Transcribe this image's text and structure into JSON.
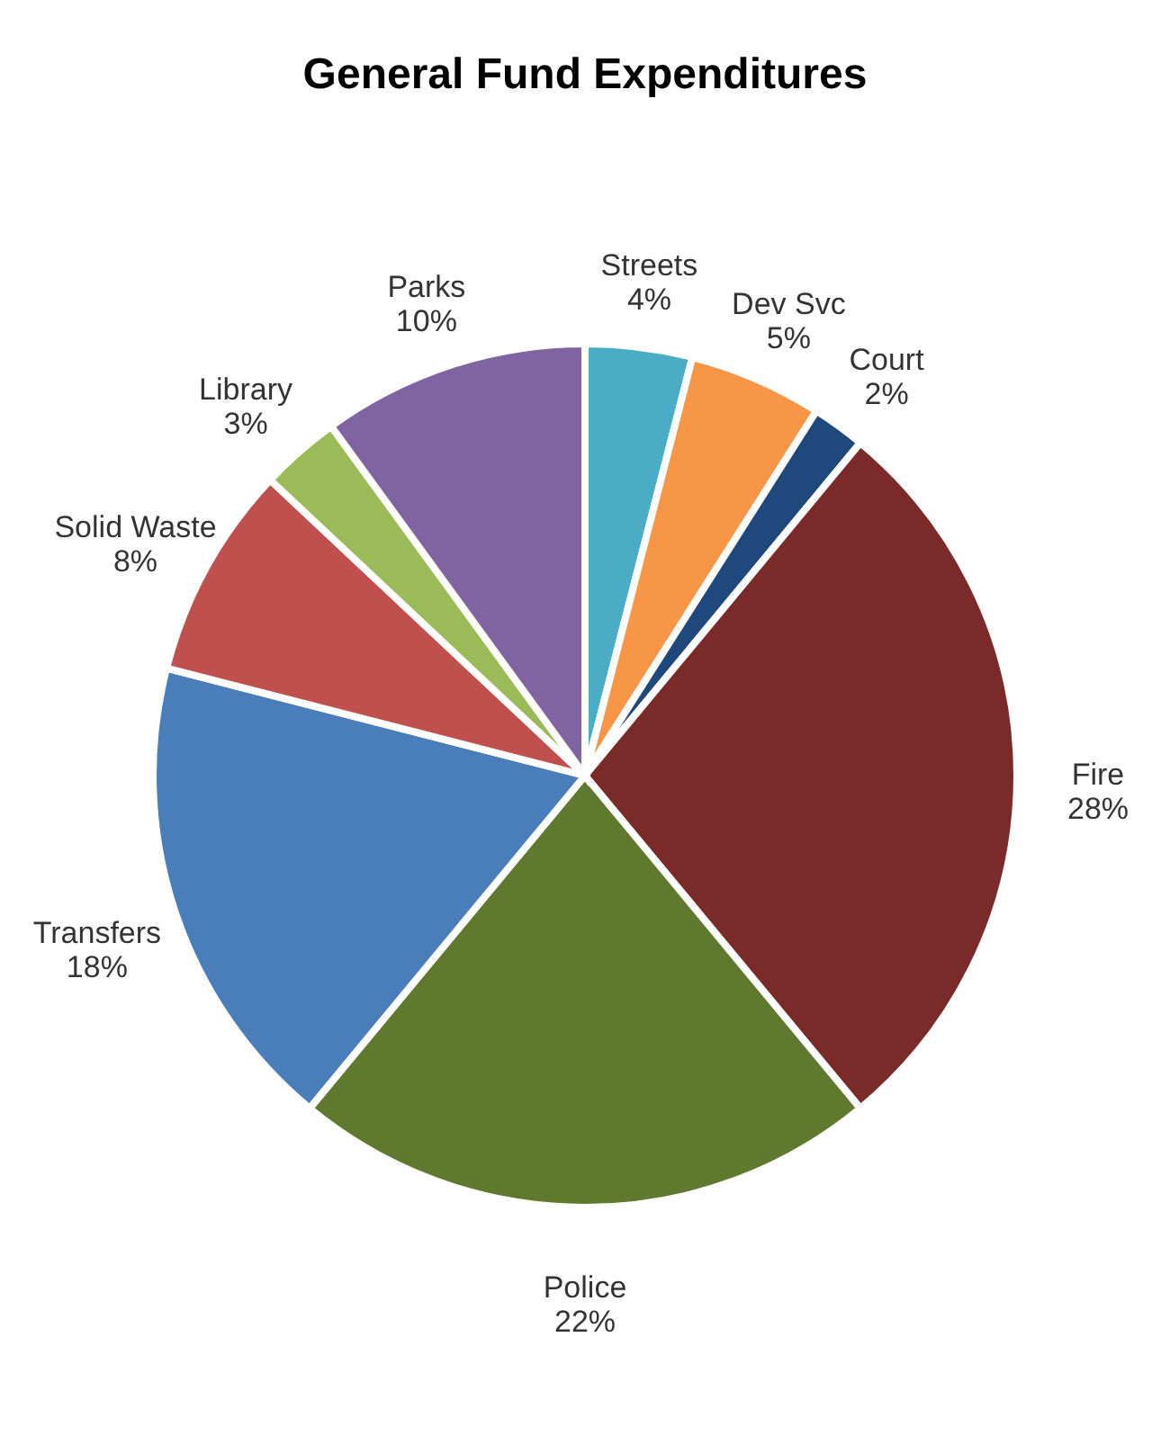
{
  "chart_data": {
    "type": "pie",
    "title": "General Fund Expenditures",
    "categories": [
      "Streets",
      "Dev Svc",
      "Court",
      "Fire",
      "Police",
      "Transfers",
      "Solid Waste",
      "Library",
      "Parks"
    ],
    "values": [
      4,
      5,
      2,
      28,
      22,
      18,
      8,
      3,
      10
    ],
    "value_labels": [
      "4%",
      "5%",
      "2%",
      "28%",
      "22%",
      "18%",
      "8%",
      "3%",
      "10%"
    ],
    "colors": [
      "#4bacc6",
      "#f79646",
      "#1f497d",
      "#7b2a2a",
      "#5f7a2f",
      "#4a7ebb",
      "#c0504d",
      "#9bbb59",
      "#8064a2"
    ],
    "legend": false
  }
}
